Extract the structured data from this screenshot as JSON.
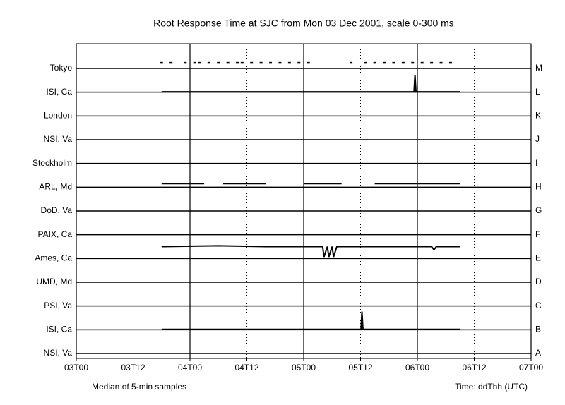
{
  "chart_data": {
    "type": "lanes",
    "title": "Root Response Time at SJC from Mon 03 Dec 2001, scale 0-300 ms",
    "note_left": "Median of 5-min samples",
    "note_right": "Time: ddThh (UTC)",
    "xlim": [
      0,
      96
    ],
    "xticks": [
      {
        "value": 0,
        "label": "03T00"
      },
      {
        "value": 12,
        "label": "03T12"
      },
      {
        "value": 24,
        "label": "04T00"
      },
      {
        "value": 36,
        "label": "04T12"
      },
      {
        "value": 48,
        "label": "05T00"
      },
      {
        "value": 60,
        "label": "05T12"
      },
      {
        "value": 72,
        "label": "06T00"
      },
      {
        "value": 84,
        "label": "06T12"
      },
      {
        "value": 96,
        "label": "07T00"
      }
    ],
    "ylim": [
      0,
      300
    ],
    "grid": true,
    "color": "#000000",
    "series": [
      {
        "name": "Tokyo",
        "letter": "M",
        "style": "dashes",
        "x": [
          18,
          20,
          23,
          25,
          26,
          28,
          30,
          32,
          34,
          35,
          37,
          39,
          41,
          43,
          45,
          47,
          49,
          58,
          61,
          63,
          65,
          67,
          69,
          71,
          73,
          75,
          77,
          79
        ],
        "values": [
          75,
          75,
          75,
          75,
          75,
          75,
          75,
          75,
          75,
          75,
          75,
          75,
          75,
          75,
          75,
          75,
          75,
          75,
          75,
          75,
          75,
          75,
          75,
          75,
          75,
          75,
          75,
          75
        ]
      },
      {
        "name": "ISI, Ca",
        "letter": "L",
        "style": "line",
        "x": [
          18,
          71.3,
          71.5,
          71.7,
          81
        ],
        "values": [
          5,
          5,
          220,
          5,
          5
        ]
      },
      {
        "name": "London",
        "letter": "K"
      },
      {
        "name": "NSI, Va",
        "letter": "J"
      },
      {
        "name": "Stockholm",
        "letter": "I"
      },
      {
        "name": "ARL, Md",
        "letter": "H",
        "style": "line",
        "x": [
          18,
          27,
          28,
          31,
          40,
          41,
          48,
          56,
          57,
          63,
          73,
          81
        ],
        "values": [
          45,
          45,
          null,
          45,
          45,
          null,
          45,
          45,
          null,
          45,
          45,
          45
        ]
      },
      {
        "name": "DoD, Va",
        "letter": "G"
      },
      {
        "name": "PAIX, Ca",
        "letter": "F"
      },
      {
        "name": "Ames, Ca",
        "letter": "E",
        "style": "line",
        "x": [
          18,
          30,
          40,
          48,
          52,
          52.3,
          53,
          53.3,
          54,
          54.3,
          55,
          60,
          72,
          75,
          75.5,
          76,
          81
        ],
        "values": [
          150,
          160,
          150,
          150,
          150,
          20,
          150,
          20,
          150,
          20,
          150,
          150,
          150,
          150,
          110,
          150,
          150
        ]
      },
      {
        "name": "UMD, Md",
        "letter": "D"
      },
      {
        "name": "PSI, Va",
        "letter": "C"
      },
      {
        "name": "ISI, Ca",
        "letter": "B",
        "style": "line",
        "x": [
          18,
          60.1,
          60.3,
          60.5,
          81
        ],
        "values": [
          5,
          5,
          230,
          5,
          5
        ]
      },
      {
        "name": "NSI, Va",
        "letter": "A"
      }
    ]
  }
}
